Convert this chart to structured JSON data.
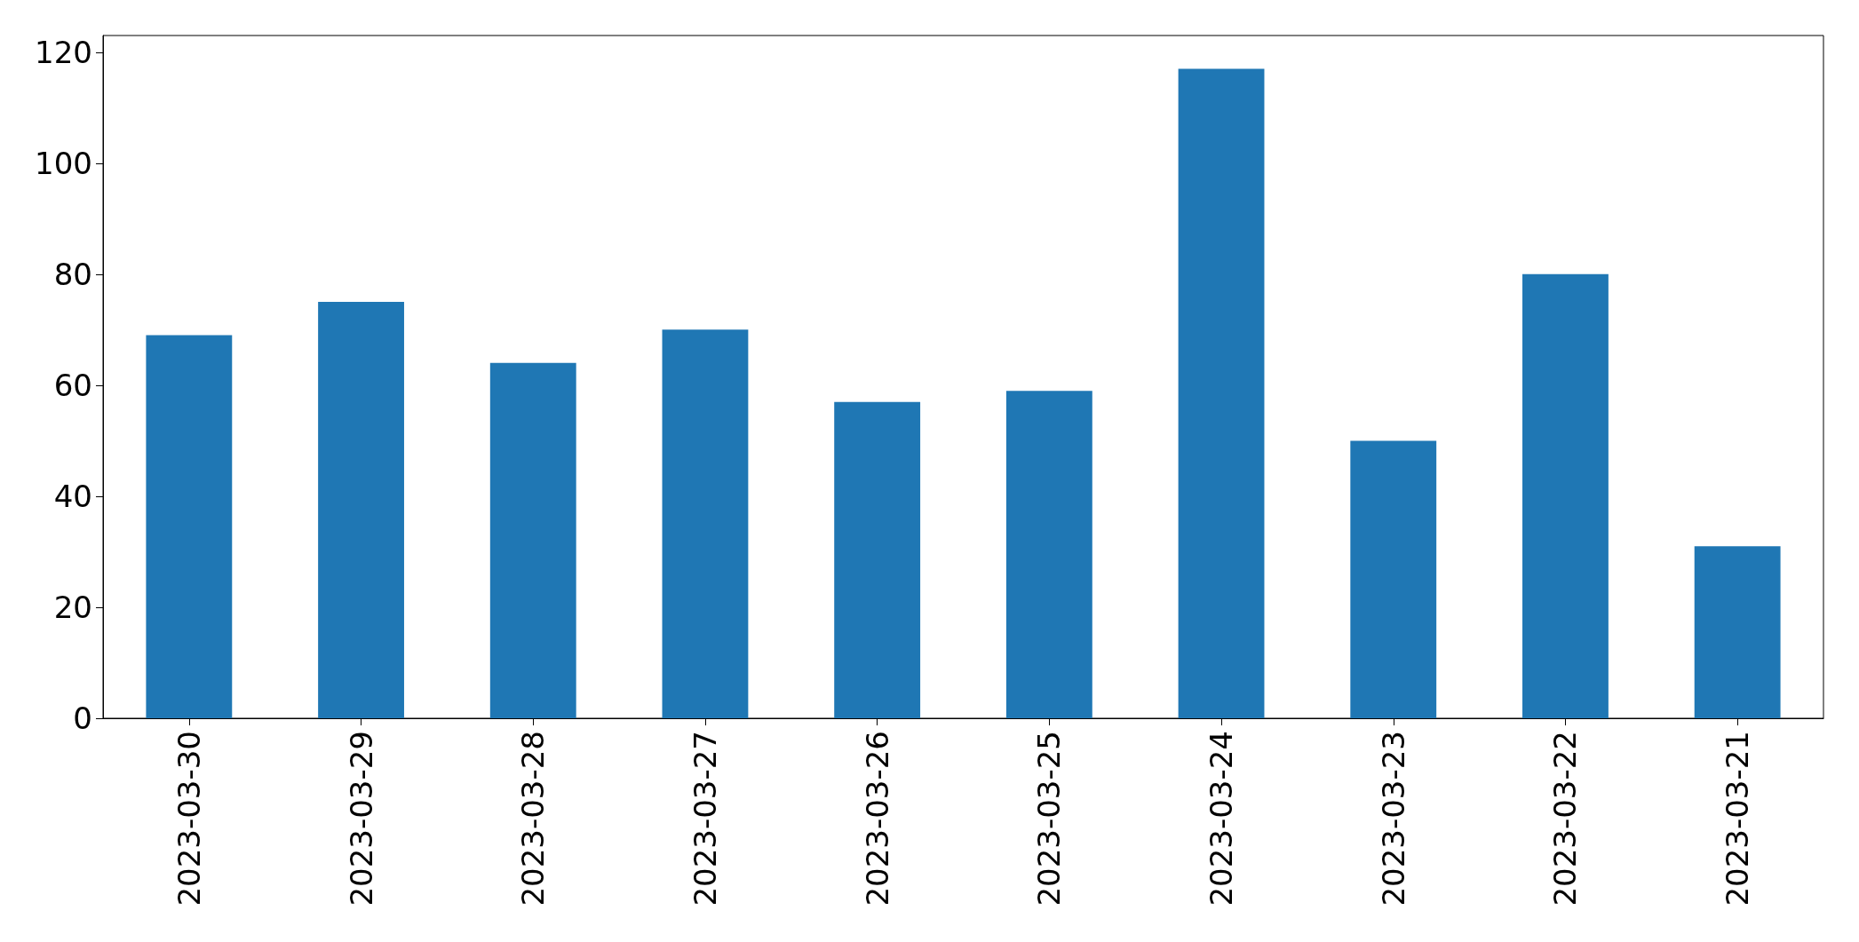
{
  "chart_data": {
    "type": "bar",
    "categories": [
      "2023-03-30",
      "2023-03-29",
      "2023-03-28",
      "2023-03-27",
      "2023-03-26",
      "2023-03-25",
      "2023-03-24",
      "2023-03-23",
      "2023-03-22",
      "2023-03-21"
    ],
    "values": [
      69,
      75,
      64,
      70,
      57,
      59,
      117,
      50,
      80,
      31
    ],
    "color": "#1f77b4",
    "ylim": [
      0,
      123
    ],
    "yticks": [
      0,
      20,
      40,
      60,
      80,
      100,
      120
    ]
  }
}
